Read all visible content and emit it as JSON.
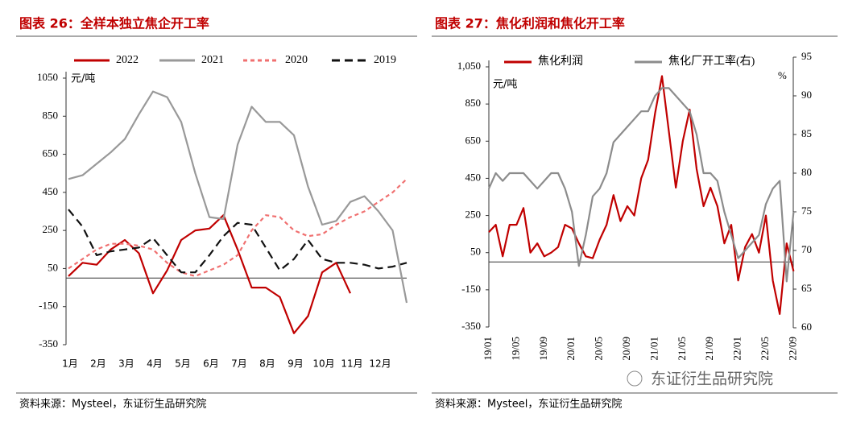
{
  "chart_data": [
    {
      "type": "line",
      "title": "图表 26：全样本独立焦企开工率",
      "y_unit": "元/吨",
      "categories": [
        "1月",
        null,
        "2月",
        null,
        "3月",
        null,
        "4月",
        null,
        "5月",
        null,
        "6月",
        null,
        "7月",
        null,
        "8月",
        null,
        "9月",
        null,
        "10月",
        null,
        "11月",
        null,
        "12月",
        null,
        null
      ],
      "series": [
        {
          "name": "2022",
          "color": "#c00000",
          "dash": false,
          "values": [
            10,
            80,
            70,
            150,
            200,
            130,
            -80,
            40,
            200,
            250,
            260,
            330,
            150,
            -50,
            -50,
            -100,
            -290,
            -200,
            30,
            80,
            -80,
            null,
            null,
            null,
            null
          ]
        },
        {
          "name": "2021",
          "color": "#999999",
          "dash": false,
          "values": [
            520,
            540,
            600,
            660,
            730,
            860,
            980,
            950,
            820,
            550,
            320,
            310,
            700,
            900,
            820,
            820,
            750,
            480,
            280,
            300,
            400,
            430,
            350,
            250,
            -130
          ]
        },
        {
          "name": "2020",
          "color": "#f07070",
          "dash": true,
          "values": [
            50,
            100,
            150,
            180,
            180,
            170,
            150,
            80,
            30,
            10,
            40,
            70,
            120,
            250,
            330,
            320,
            250,
            220,
            230,
            280,
            320,
            350,
            400,
            450,
            520
          ]
        },
        {
          "name": "2019",
          "color": "#111111",
          "dash": true,
          "values": [
            360,
            270,
            120,
            140,
            150,
            160,
            210,
            120,
            30,
            30,
            120,
            220,
            290,
            280,
            160,
            40,
            100,
            200,
            100,
            80,
            80,
            70,
            50,
            60,
            80
          ]
        }
      ],
      "ylim": [
        -350,
        1050
      ],
      "yticks": [
        1050,
        850,
        650,
        450,
        250,
        50,
        -150,
        -350
      ],
      "source": "资料来源：Mysteel，东证衍生品研究院"
    },
    {
      "type": "line",
      "title": "图表 27：焦化利润和焦化开工率",
      "y_unit": "元/吨",
      "y2_unit": "%",
      "categories": [
        "19/01",
        null,
        null,
        null,
        "19/05",
        null,
        null,
        null,
        "19/09",
        null,
        null,
        null,
        "20/01",
        null,
        null,
        null,
        "20/05",
        null,
        null,
        null,
        "20/09",
        null,
        null,
        null,
        "21/01",
        null,
        null,
        null,
        "21/05",
        null,
        null,
        null,
        "21/09",
        null,
        null,
        null,
        "22/01",
        null,
        null,
        null,
        "22/05",
        null,
        null,
        null,
        "22/09"
      ],
      "series": [
        {
          "name": "焦化利润",
          "color": "#c00000",
          "values": [
            160,
            200,
            30,
            200,
            200,
            290,
            50,
            100,
            30,
            50,
            80,
            200,
            180,
            100,
            30,
            20,
            120,
            200,
            360,
            220,
            300,
            250,
            450,
            550,
            800,
            1000,
            700,
            400,
            650,
            820,
            500,
            300,
            400,
            300,
            100,
            200,
            -100,
            80,
            150,
            50,
            250,
            -100,
            -280,
            100,
            -50
          ]
        },
        {
          "name": "焦化厂开工率(右)",
          "color": "#8c8c8c",
          "axis": "y2",
          "values": [
            78,
            80,
            79,
            80,
            80,
            80,
            79,
            78,
            79,
            80,
            80,
            78,
            75,
            68,
            72,
            77,
            78,
            80,
            84,
            85,
            86,
            87,
            88,
            88,
            90,
            91,
            91,
            90,
            89,
            88,
            85,
            80,
            80,
            79,
            75,
            72,
            69,
            70,
            71,
            72,
            76,
            78,
            79,
            66,
            75
          ]
        }
      ],
      "ylim": [
        -350,
        1050
      ],
      "yticks": [
        {
          "value": 1050,
          "label": "1,050"
        },
        850,
        650,
        450,
        250,
        50,
        -150,
        -350
      ],
      "y2lim": [
        60,
        95
      ],
      "y2ticks": [
        95,
        90,
        85,
        80,
        75,
        70,
        65,
        60
      ],
      "source": "资料来源：Mysteel，东证衍生品研究院"
    }
  ],
  "watermark": "东证衍生品研究院"
}
